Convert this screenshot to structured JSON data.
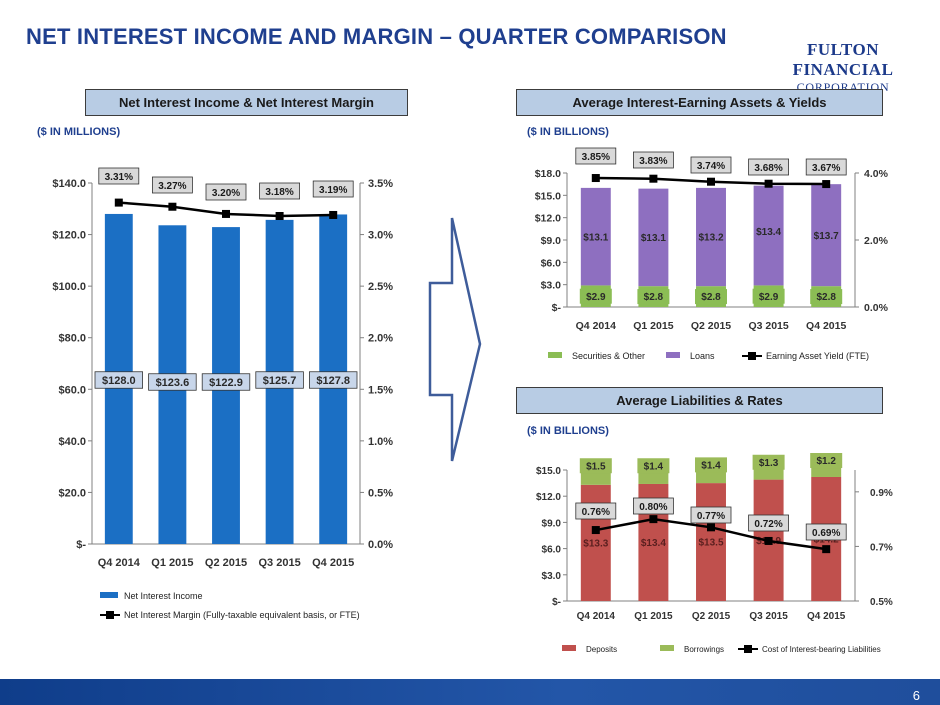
{
  "page": {
    "title": "NET INTEREST INCOME AND MARGIN – QUARTER COMPARISON",
    "logo_line1": "FULTON FINANCIAL",
    "logo_line2": "CORPORATION",
    "page_number": "6",
    "colors": {
      "title": "#1f3f8f",
      "header_fill": "#b8cce4",
      "footer": "#1f4e9c"
    }
  },
  "panels": {
    "nii": {
      "header": "Net Interest Income & Net Interest Margin",
      "unit": "($ IN MILLIONS)"
    },
    "assets": {
      "header": "Average Interest-Earning Assets & Yields",
      "unit": "($ IN BILLIONS)"
    },
    "liabilities": {
      "header": "Average Liabilities & Rates",
      "unit": "($ IN BILLIONS)"
    }
  },
  "chart_data": [
    {
      "id": "nii",
      "type": "bar",
      "categories": [
        "Q4 2014",
        "Q1 2015",
        "Q2 2015",
        "Q3 2015",
        "Q4 2015"
      ],
      "series": [
        {
          "name": "Net Interest Income",
          "type": "bar",
          "axis": "left",
          "color": "#1b6fc4",
          "values": [
            128.0,
            123.6,
            122.9,
            125.7,
            127.8
          ],
          "labels": [
            "$128.0",
            "$123.6",
            "$122.9",
            "$125.7",
            "$127.8"
          ]
        },
        {
          "name": "Net Interest Margin (Fully-taxable equivalent basis, or FTE)",
          "type": "line",
          "axis": "right",
          "color": "#000000",
          "values": [
            3.31,
            3.27,
            3.2,
            3.18,
            3.19
          ],
          "labels": [
            "3.31%",
            "3.27%",
            "3.20%",
            "3.18%",
            "3.19%"
          ]
        }
      ],
      "y_left": {
        "min": 0,
        "max": 140,
        "ticks": [
          0,
          20,
          40,
          60,
          80,
          100,
          120,
          140
        ],
        "tick_labels": [
          "$-",
          "$20.0",
          "$40.0",
          "$60.0",
          "$80.0",
          "$100.0",
          "$120.0",
          "$140.0"
        ]
      },
      "y_right": {
        "min": 0,
        "max": 3.5,
        "ticks": [
          0,
          0.5,
          1.0,
          1.5,
          2.0,
          2.5,
          3.0,
          3.5
        ],
        "tick_labels": [
          "0.0%",
          "0.5%",
          "1.0%",
          "1.5%",
          "2.0%",
          "2.5%",
          "3.0%",
          "3.5%"
        ]
      },
      "grid": false,
      "legend": "bottom"
    },
    {
      "id": "assets",
      "type": "bar",
      "stacked": true,
      "categories": [
        "Q4 2014",
        "Q1 2015",
        "Q2 2015",
        "Q3 2015",
        "Q4 2015"
      ],
      "series": [
        {
          "name": "Securities & Other",
          "type": "bar",
          "axis": "left",
          "color": "#8bbd54",
          "values": [
            2.9,
            2.8,
            2.8,
            2.9,
            2.8
          ],
          "labels": [
            "$2.9",
            "$2.8",
            "$2.8",
            "$2.9",
            "$2.8"
          ]
        },
        {
          "name": "Loans",
          "type": "bar",
          "axis": "left",
          "color": "#8e6fc0",
          "values": [
            13.1,
            13.1,
            13.2,
            13.4,
            13.7
          ],
          "labels": [
            "$13.1",
            "$13.1",
            "$13.2",
            "$13.4",
            "$13.7"
          ]
        },
        {
          "name": "Earning Asset Yield (FTE)",
          "type": "line",
          "axis": "right",
          "color": "#000000",
          "values": [
            3.85,
            3.83,
            3.74,
            3.68,
            3.67
          ],
          "labels": [
            "3.85%",
            "3.83%",
            "3.74%",
            "3.68%",
            "3.67%"
          ]
        }
      ],
      "y_left": {
        "min": 0,
        "max": 18,
        "ticks": [
          0,
          3,
          6,
          9,
          12,
          15,
          18
        ],
        "tick_labels": [
          "$-",
          "$3.0",
          "$6.0",
          "$9.0",
          "$12.0",
          "$15.0",
          "$18.0"
        ]
      },
      "y_right": {
        "min": 0,
        "max": 4,
        "ticks": [
          0,
          2,
          4
        ],
        "tick_labels": [
          "0.0%",
          "2.0%",
          "4.0%"
        ]
      },
      "grid": false,
      "legend": "bottom"
    },
    {
      "id": "liabilities",
      "type": "bar",
      "stacked": true,
      "categories": [
        "Q4 2014",
        "Q1 2015",
        "Q2 2015",
        "Q3 2015",
        "Q4 2015"
      ],
      "series": [
        {
          "name": "Deposits",
          "type": "bar",
          "axis": "left",
          "color": "#c0504d",
          "values": [
            13.3,
            13.4,
            13.5,
            13.9,
            14.2
          ],
          "labels": [
            "$13.3",
            "$13.4",
            "$13.5",
            "$13.9",
            "$14.2"
          ]
        },
        {
          "name": "Borrowings",
          "type": "bar",
          "axis": "left",
          "color": "#9bbb59",
          "values": [
            1.5,
            1.4,
            1.4,
            1.3,
            1.2
          ],
          "labels": [
            "$1.5",
            "$1.4",
            "$1.4",
            "$1.3",
            "$1.2"
          ]
        },
        {
          "name": "Cost of Interest-bearing Liabilities",
          "type": "line",
          "axis": "right",
          "color": "#000000",
          "values": [
            0.76,
            0.8,
            0.77,
            0.72,
            0.69
          ],
          "labels": [
            "0.76%",
            "0.80%",
            "0.77%",
            "0.72%",
            "0.69%"
          ]
        }
      ],
      "y_left": {
        "min": 0,
        "max": 15,
        "ticks": [
          0,
          3,
          6,
          9,
          12,
          15
        ],
        "tick_labels": [
          "$-",
          "$3.0",
          "$6.0",
          "$9.0",
          "$12.0",
          "$15.0"
        ]
      },
      "y_right": {
        "min": 0.5,
        "max": 0.98,
        "ticks": [
          0.5,
          0.7,
          0.9
        ],
        "tick_labels": [
          "0.5%",
          "0.7%",
          "0.9%"
        ]
      },
      "grid": false,
      "legend": "bottom"
    }
  ]
}
